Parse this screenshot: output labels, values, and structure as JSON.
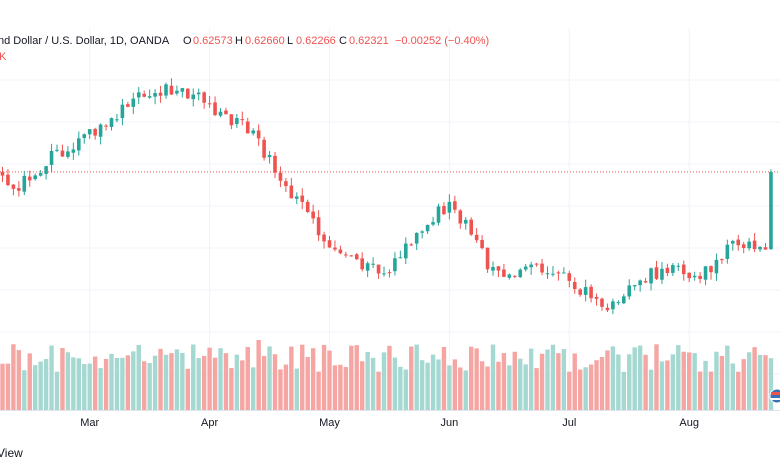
{
  "header": {
    "symbol": "nd Dollar / U.S. Dollar, 1D, OANDA",
    "open_label": "O",
    "open": "0.62573",
    "high_label": "H",
    "high": "0.62660",
    "low_label": "L",
    "low": "0.62266",
    "close_label": "C",
    "close": "0.62321",
    "change": "−0.00252 (−0.40%)",
    "volume_fragment": "K"
  },
  "footer": {
    "watermark": "View"
  },
  "colors": {
    "up": "#26a69a",
    "down": "#ef5350",
    "vol_up": "#a6d8d2",
    "vol_down": "#f5a6a3",
    "grid": "#f0f3fa",
    "text": "#131722",
    "price_line": "#ef5350",
    "axis_text": "#131722"
  },
  "chart_data": {
    "type": "candlestick",
    "timeframe": "1D",
    "grid": true,
    "x_tick_labels": [
      "Mar",
      "Apr",
      "May",
      "Jun",
      "Jul",
      "Aug"
    ],
    "x_tick_positions": [
      16,
      38,
      60,
      82,
      104,
      126
    ],
    "y_range": [
      0.59,
      0.646
    ],
    "last_close": 0.62321,
    "waypoints": [
      [
        0,
        0.622
      ],
      [
        3,
        0.62
      ],
      [
        9,
        0.6265
      ],
      [
        19,
        0.6325
      ],
      [
        25,
        0.639
      ],
      [
        30,
        0.64
      ],
      [
        37,
        0.638
      ],
      [
        46,
        0.631
      ],
      [
        53,
        0.6185
      ],
      [
        58,
        0.611
      ],
      [
        63,
        0.606
      ],
      [
        69,
        0.602
      ],
      [
        73,
        0.6055
      ],
      [
        80,
        0.615
      ],
      [
        82,
        0.616
      ],
      [
        85,
        0.613
      ],
      [
        89,
        0.604
      ],
      [
        92,
        0.601
      ],
      [
        96,
        0.605
      ],
      [
        103,
        0.601
      ],
      [
        108,
        0.598
      ],
      [
        112,
        0.595
      ],
      [
        117,
        0.6015
      ],
      [
        123,
        0.603
      ],
      [
        130,
        0.602
      ],
      [
        134,
        0.609
      ],
      [
        139,
        0.608
      ],
      [
        141,
        0.6035
      ]
    ],
    "volume": {
      "y_max": 100,
      "spikes": [
        [
          11,
          0.62
        ],
        [
          47,
          0.7
        ]
      ]
    }
  }
}
